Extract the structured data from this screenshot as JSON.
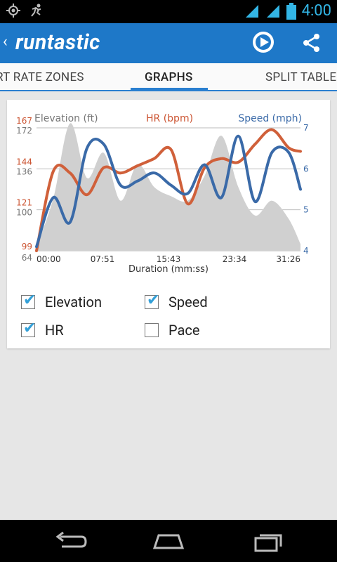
{
  "status": {
    "time": "4:00",
    "left_icons": [
      "gps-icon",
      "running-icon"
    ],
    "right_icons": [
      "wifi-icon",
      "signal-icon",
      "battery-icon"
    ]
  },
  "app": {
    "title": "runtastic",
    "back_glyph": "‹"
  },
  "tabs": [
    {
      "label": "RT RATE ZONES"
    },
    {
      "label": "GRAPHS"
    },
    {
      "label": "SPLIT TABLE"
    }
  ],
  "chart_data": {
    "type": "line",
    "xlabel": "Duration (mm:ss)",
    "x_ticks": [
      "00:00",
      "07:51",
      "15:43",
      "23:34",
      "31:26"
    ],
    "x": [
      0,
      2,
      4,
      6,
      8,
      10,
      12,
      14,
      16,
      18,
      20,
      22,
      24,
      26,
      28,
      30,
      31.4
    ],
    "axes": {
      "elevation": {
        "label": "Elevation (ft)",
        "ticks": [
          64,
          100,
          136,
          172
        ],
        "color": "#777777"
      },
      "hr": {
        "label": "HR (bpm)",
        "ticks": [
          99,
          121,
          144,
          167
        ],
        "color": "#cc5533"
      },
      "speed": {
        "label": "Speed (mph)",
        "ticks": [
          4,
          5,
          6,
          7
        ],
        "color": "#3a6aa8"
      }
    },
    "series": [
      {
        "name": "Elevation",
        "axis": "elevation",
        "values": [
          68,
          110,
          176,
          128,
          150,
          108,
          140,
          120,
          112,
          108,
          130,
          165,
          120,
          95,
          108,
          92,
          70
        ]
      },
      {
        "name": "HR",
        "axis": "hr",
        "values": [
          99,
          143,
          142,
          130,
          145,
          142,
          146,
          150,
          155,
          125,
          145,
          150,
          148,
          158,
          166,
          156,
          154
        ]
      },
      {
        "name": "Speed",
        "axis": "speed",
        "values": [
          4.1,
          5.3,
          4.7,
          6.5,
          6.6,
          5.6,
          5.7,
          5.9,
          5.6,
          5.4,
          6.1,
          5.3,
          6.8,
          5.2,
          6.4,
          6.4,
          5.5
        ]
      }
    ],
    "grid": true
  },
  "legend": [
    {
      "label": "Elevation",
      "checked": true
    },
    {
      "label": "Speed",
      "checked": true
    },
    {
      "label": "HR",
      "checked": true
    },
    {
      "label": "Pace",
      "checked": false
    }
  ]
}
